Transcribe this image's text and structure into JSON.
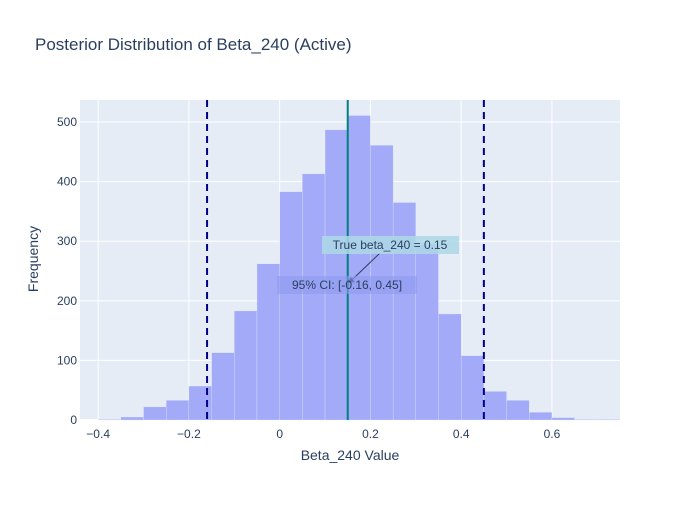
{
  "chart_data": {
    "type": "bar",
    "title": "Posterior Distribution of Beta_240 (Active)",
    "xlabel": "Beta_240 Value",
    "ylabel": "Frequency",
    "xlim": [
      -0.44,
      0.75
    ],
    "ylim": [
      0,
      537
    ],
    "x_ticks": [
      -0.4,
      -0.2,
      0,
      0.2,
      0.4,
      0.6
    ],
    "x_tick_labels": [
      "−0.4",
      "−0.2",
      "0",
      "0.2",
      "0.4",
      "0.6"
    ],
    "y_ticks": [
      0,
      100,
      200,
      300,
      400,
      500
    ],
    "bin_width": 0.05,
    "bins_start": [
      -0.4,
      -0.35,
      -0.3,
      -0.25,
      -0.2,
      -0.15,
      -0.1,
      -0.05,
      0.0,
      0.05,
      0.1,
      0.15,
      0.2,
      0.25,
      0.3,
      0.35,
      0.4,
      0.45,
      0.5,
      0.55,
      0.6,
      0.65,
      0.7
    ],
    "values": [
      1,
      5,
      22,
      33,
      57,
      113,
      183,
      262,
      383,
      413,
      487,
      511,
      461,
      365,
      295,
      178,
      108,
      48,
      33,
      13,
      4,
      1,
      1
    ],
    "bar_color": "#a3abf8",
    "ci_lower": -0.16,
    "ci_upper": 0.45,
    "true_value": 0.15,
    "ci_line_color": "#00008b",
    "true_line_color": "#008080",
    "annotations": {
      "true_label": "True beta_240 = 0.15",
      "ci_label": "95% CI: [-0.16, 0.45]"
    },
    "grid": true,
    "plot_bg": "#e5ecf6"
  }
}
